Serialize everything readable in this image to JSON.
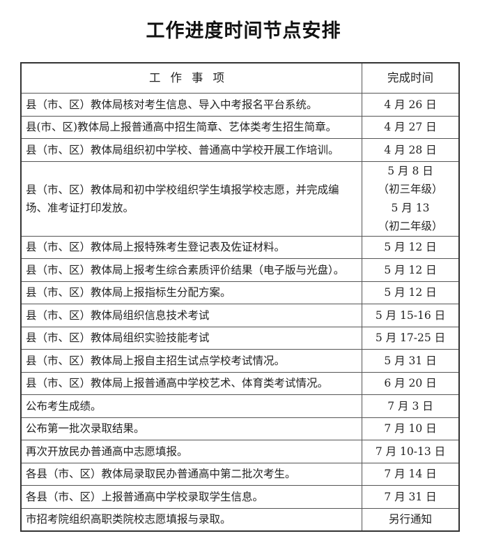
{
  "title": "工作进度时间节点安排",
  "table": {
    "headers": [
      "工作事项",
      "完成时间"
    ],
    "rows": [
      {
        "item": "县（市、区）教体局核对考生信息、导入中考报名平台系统。",
        "time": "4 月 26 日"
      },
      {
        "item": "县(市、区)教体局上报普通高中招生简章、艺体类考生招生简章。",
        "time": "4 月 27 日"
      },
      {
        "item": "县（市、区）教体局组织初中学校、普通高中学校开展工作培训。",
        "time": "4 月 28 日"
      },
      {
        "item": "县（市、区）教体局和初中学校组织学生填报学校志愿，并完成编场、准考证打印发放。",
        "time_lines": [
          "5 月 8 日",
          "（初三年级）",
          "5 月 13",
          "（初二年级）"
        ]
      },
      {
        "item": "县（市、区）教体局上报特殊考生登记表及佐证材料。",
        "time": "5 月 12 日"
      },
      {
        "item": "县（市、区）教体局上报考生综合素质评价结果（电子版与光盘）。",
        "time": "5 月 12 日"
      },
      {
        "item": "县（市、区）教体局上报指标生分配方案。",
        "time": "5 月 12 日"
      },
      {
        "item": "县（市、区）教体局组织信息技术考试",
        "time": "5 月 15-16 日"
      },
      {
        "item": "县（市、区）教体局组织实验技能考试",
        "time": "5 月 17-25 日"
      },
      {
        "item": "县（市、区）教体局上报自主招生试点学校考试情况。",
        "time": "5 月 31 日"
      },
      {
        "item": "县（市、区）教体局上报普通高中学校艺术、体育类考试情况。",
        "time": "6 月 20 日"
      },
      {
        "item": "公布考生成绩。",
        "time": "7 月 3 日"
      },
      {
        "item": "公布第一批次录取结果。",
        "time": "7 月 10 日"
      },
      {
        "item": "再次开放民办普通高中志愿填报。",
        "time": "7 月 10-13 日"
      },
      {
        "item": "各县（市、区）教体局录取民办普通高中第二批次考生。",
        "time": "7 月 14 日"
      },
      {
        "item": "各县（市、区）上报普通高中学校录取学生信息。",
        "time": "7 月 31 日"
      },
      {
        "item": "市招考院组织高职类院校志愿填报与录取。",
        "time": "另行通知"
      }
    ]
  }
}
